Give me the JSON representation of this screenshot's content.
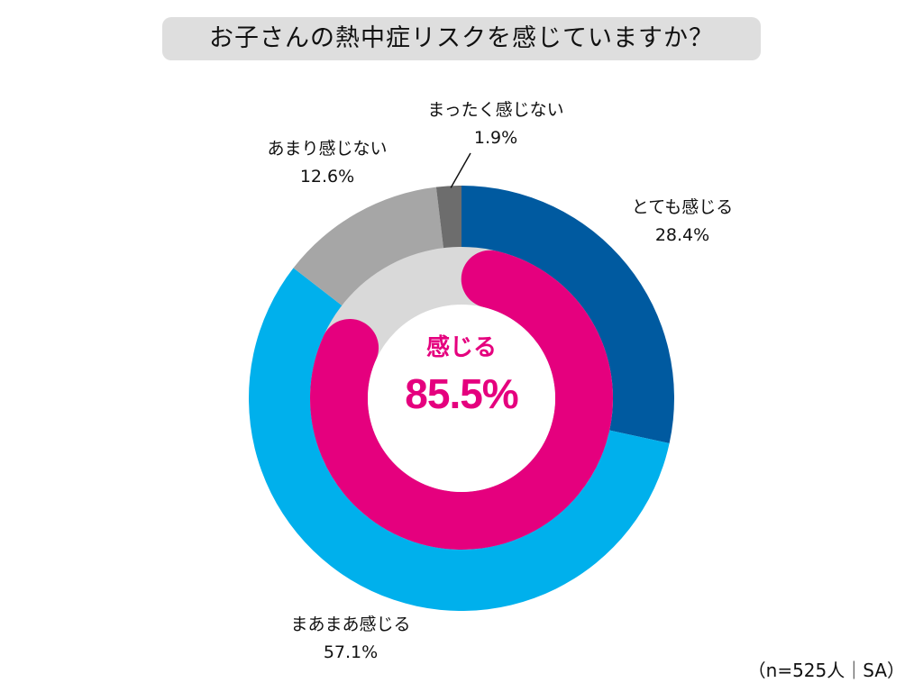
{
  "title": "お子さんの熱中症リスクを感じていますか？",
  "footnote": "（n=525人｜SA）",
  "center": {
    "label": "感じる",
    "value": "85.5%"
  },
  "chart_data": {
    "type": "pie",
    "segments": [
      {
        "label": "とても感じる",
        "value": 28.4,
        "display": "28.4%",
        "color": "#005aa0"
      },
      {
        "label": "まあまあ感じる",
        "value": 57.1,
        "display": "57.1%",
        "color": "#00b0ec"
      },
      {
        "label": "あまり感じない",
        "value": 12.6,
        "display": "12.6%",
        "color": "#a6a6a6"
      },
      {
        "label": "まったく感じない",
        "value": 1.9,
        "display": "1.9%",
        "color": "#6d6d6d"
      }
    ],
    "inner_ring": {
      "label": "感じる",
      "value": 85.5,
      "display": "85.5%",
      "color": "#e5007e",
      "track_color": "#d9d9d9"
    }
  }
}
